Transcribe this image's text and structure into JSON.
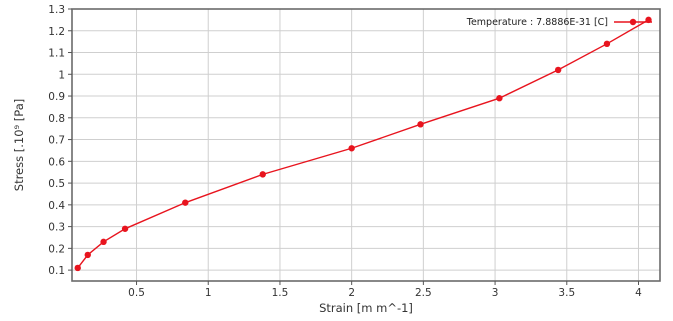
{
  "chart_data": {
    "type": "line",
    "title": "",
    "xlabel": "Strain  [m m^-1]",
    "ylabel": "Stress  [.10⁹  [Pa]",
    "xlim": [
      0.05,
      4.15
    ],
    "ylim": [
      0.05,
      1.3
    ],
    "xticks": [
      0.5,
      1,
      1.5,
      2,
      2.5,
      3,
      3.5,
      4
    ],
    "yticks": [
      0.1,
      0.2,
      0.3,
      0.4,
      0.5,
      0.6,
      0.7,
      0.8,
      0.9,
      1,
      1.1,
      1.2,
      1.3
    ],
    "grid": true,
    "legend_position": "top-right",
    "series": [
      {
        "name": "Temperature : 7.8886E-31 [C]",
        "color": "#e8141e",
        "x": [
          0.09,
          0.16,
          0.27,
          0.42,
          0.84,
          1.38,
          2.0,
          2.48,
          3.03,
          3.44,
          3.78,
          4.07
        ],
        "y": [
          0.11,
          0.17,
          0.23,
          0.29,
          0.41,
          0.54,
          0.66,
          0.77,
          0.89,
          1.02,
          1.14,
          1.25
        ]
      }
    ]
  }
}
